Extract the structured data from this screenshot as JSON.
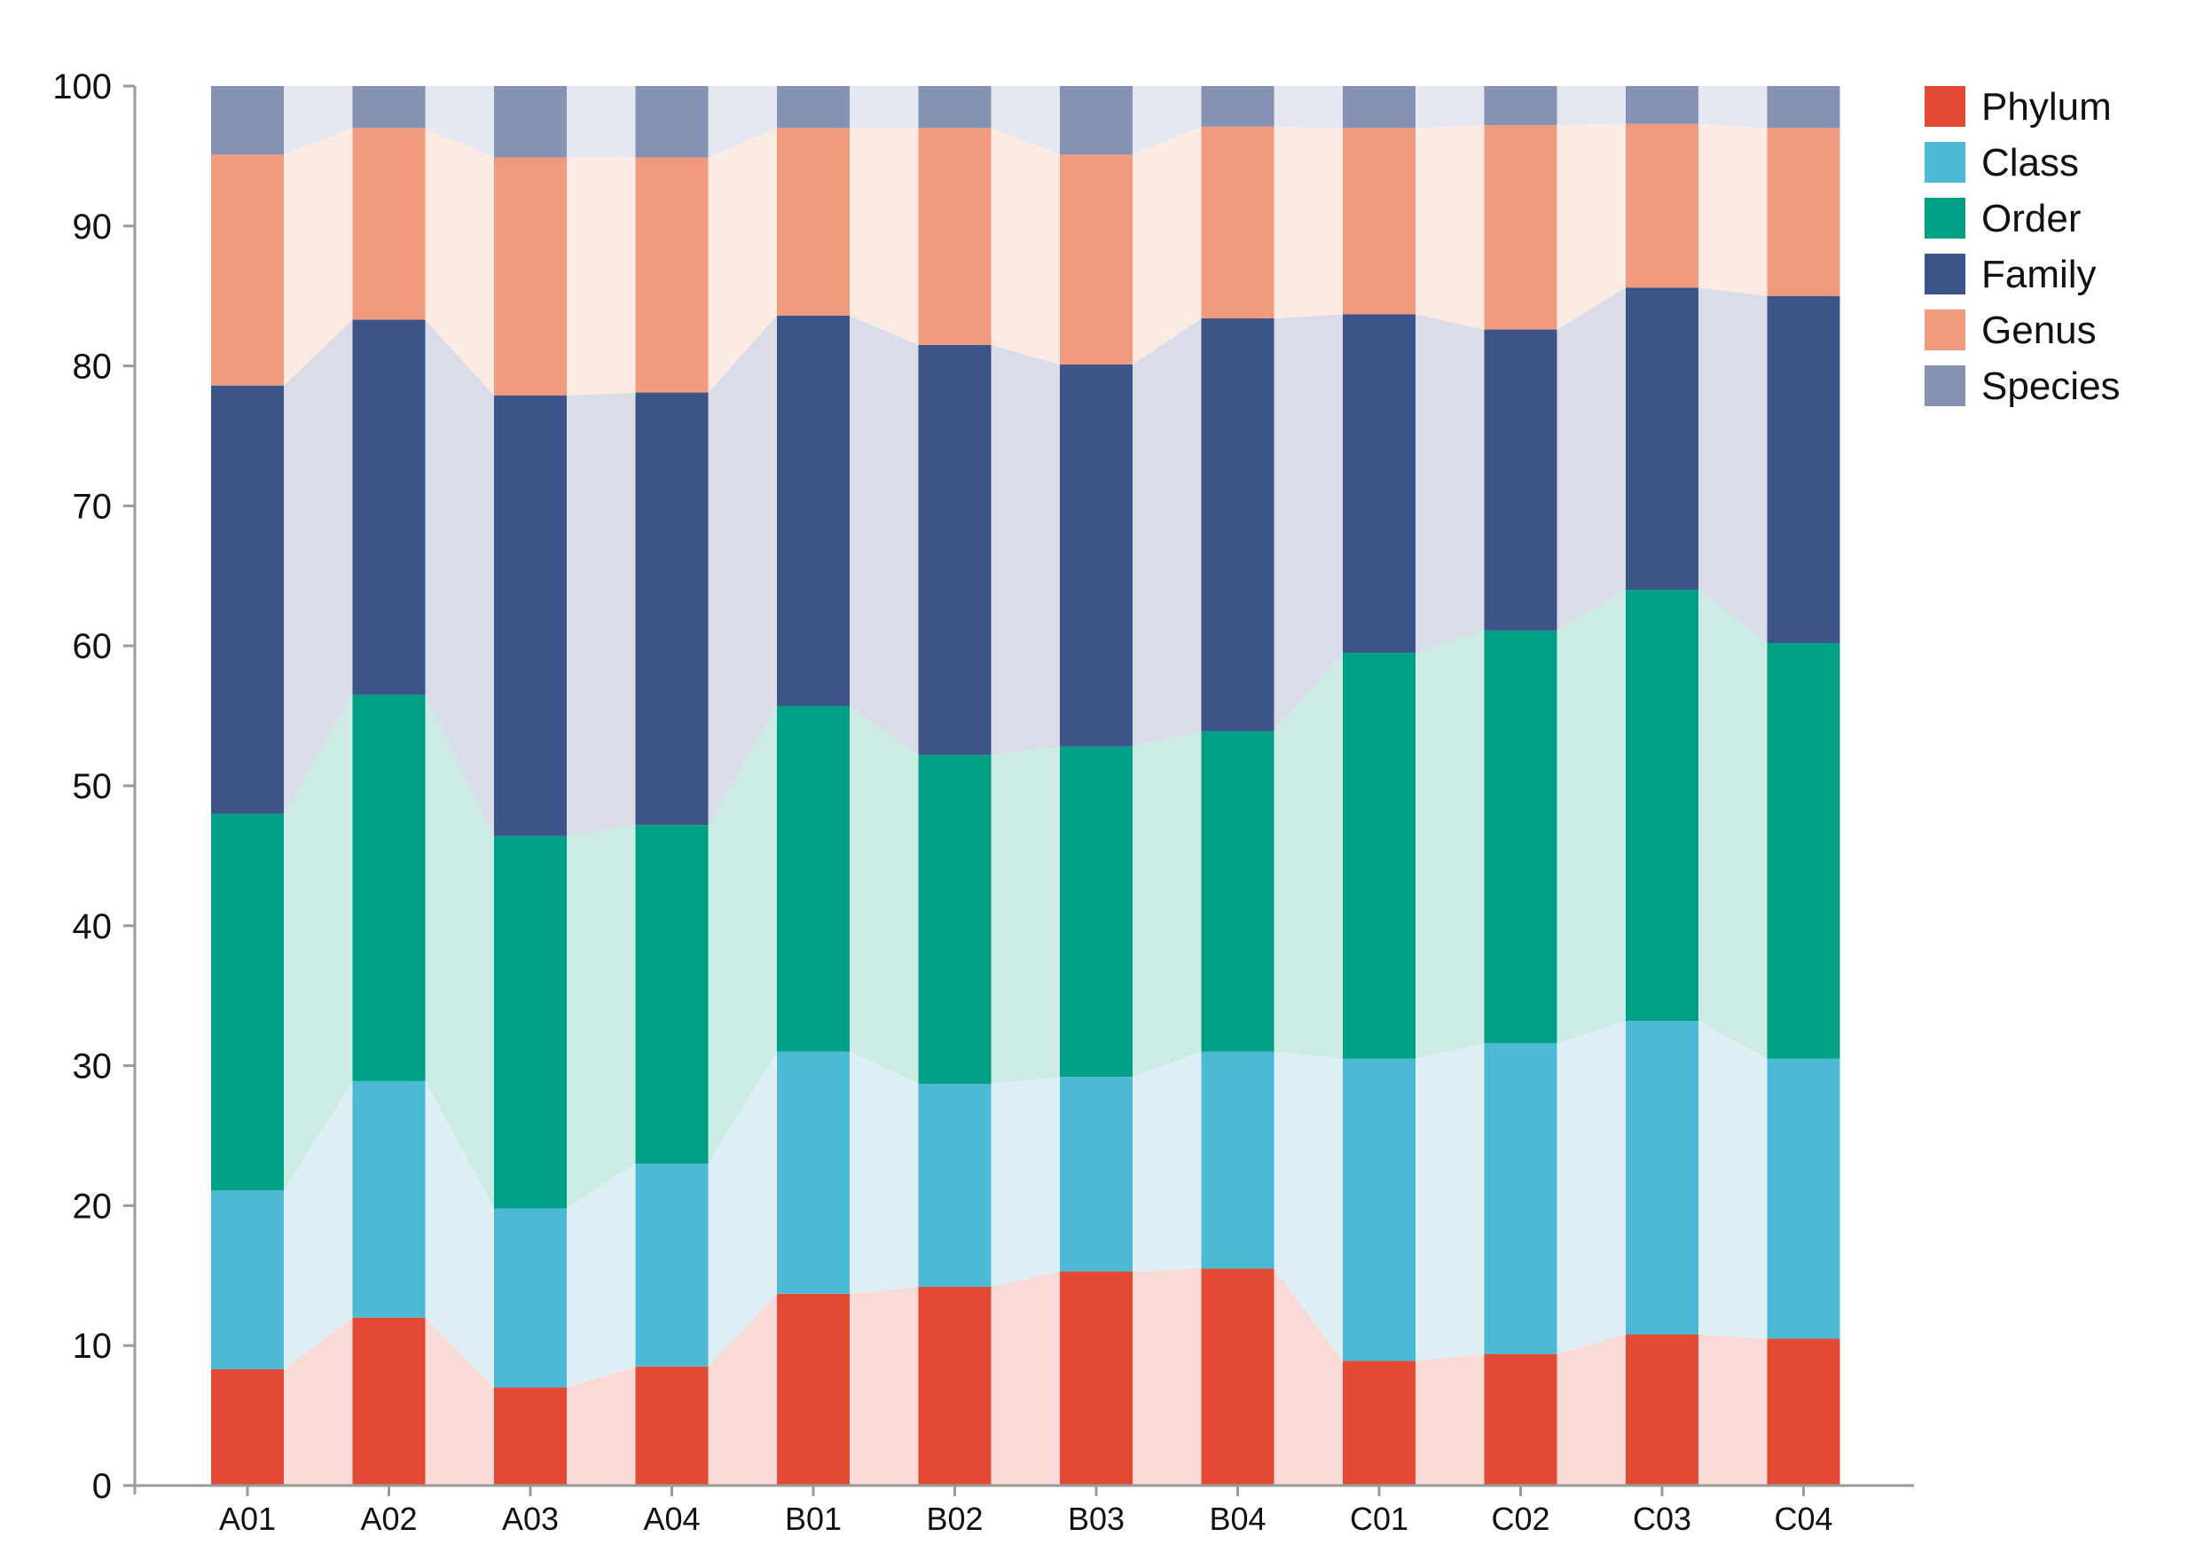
{
  "chart_data": {
    "type": "bar",
    "stacked": true,
    "show_band_connectors": true,
    "title": "",
    "xlabel": "",
    "ylabel": "",
    "ylim": [
      0,
      100
    ],
    "yticks": [
      0,
      10,
      20,
      30,
      40,
      50,
      60,
      70,
      80,
      90,
      100
    ],
    "yticklabels": [
      "0",
      "10",
      "20",
      "30",
      "40",
      "50",
      "60",
      "70",
      "80",
      "90",
      "100"
    ],
    "grid": false,
    "legend_position": "top-right",
    "categories": [
      "A01",
      "A02",
      "A03",
      "A04",
      "B01",
      "B02",
      "B03",
      "B04",
      "C01",
      "C02",
      "C03",
      "C04"
    ],
    "series": [
      {
        "name": "Phylum",
        "color": "#E34A33",
        "band_color": "#F9DAD6",
        "values": [
          8.3,
          12.0,
          7.0,
          8.5,
          13.7,
          14.2,
          15.3,
          15.5,
          8.9,
          9.4,
          10.8,
          10.5
        ]
      },
      {
        "name": "Class",
        "color": "#4CB9D5",
        "band_color": "#DDEFF4",
        "values": [
          12.8,
          16.9,
          12.8,
          14.5,
          17.3,
          14.5,
          13.9,
          15.5,
          21.6,
          22.2,
          22.4,
          20.0
        ]
      },
      {
        "name": "Order",
        "color": "#00A086",
        "band_color": "#CDEBE5",
        "values": [
          26.9,
          27.6,
          26.6,
          24.2,
          24.7,
          23.5,
          23.6,
          22.9,
          29.0,
          29.5,
          30.8,
          29.7
        ]
      },
      {
        "name": "Family",
        "color": "#3D5488",
        "band_color": "#DADDE7",
        "values": [
          30.6,
          26.8,
          31.5,
          30.9,
          27.9,
          29.3,
          27.3,
          29.5,
          24.2,
          21.5,
          21.6,
          24.8
        ]
      },
      {
        "name": "Genus",
        "color": "#F29A7E",
        "band_color": "#FCEAE3",
        "values": [
          16.5,
          13.7,
          17.0,
          16.8,
          13.4,
          15.5,
          15.0,
          13.7,
          13.3,
          14.6,
          11.7,
          12.0
        ]
      },
      {
        "name": "Species",
        "color": "#8692B3",
        "band_color": "#E6E8F1",
        "values": [
          4.9,
          3.0,
          5.1,
          5.1,
          3.0,
          3.0,
          4.9,
          2.9,
          3.0,
          2.8,
          2.7,
          3.0
        ]
      }
    ]
  }
}
